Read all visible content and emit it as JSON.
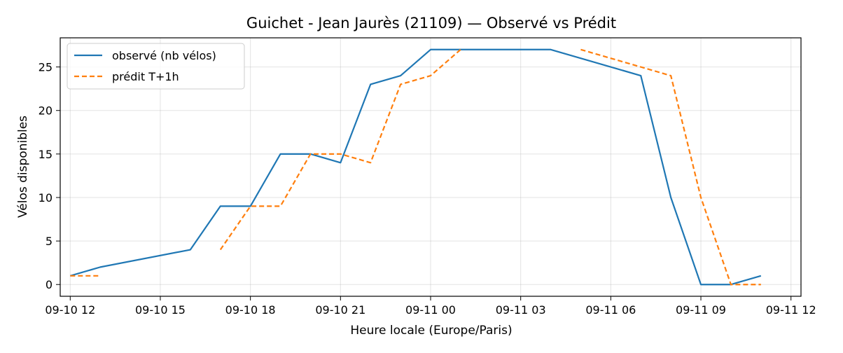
{
  "chart_data": {
    "type": "line",
    "title": "Guichet - Jean Jaurès (21109) — Observé vs Prédit",
    "xlabel": "Heure locale (Europe/Paris)",
    "ylabel": "Vélos disponibles",
    "xlim": [
      "2025-09-10T11:40",
      "2025-09-11T12:20"
    ],
    "ylim": [
      -1.35,
      28.35
    ],
    "x_ticks": [
      {
        "x": "2025-09-10T12:00",
        "label": "09-10 12"
      },
      {
        "x": "2025-09-10T15:00",
        "label": "09-10 15"
      },
      {
        "x": "2025-09-10T18:00",
        "label": "09-10 18"
      },
      {
        "x": "2025-09-10T21:00",
        "label": "09-10 21"
      },
      {
        "x": "2025-09-11T00:00",
        "label": "09-11 00"
      },
      {
        "x": "2025-09-11T03:00",
        "label": "09-11 03"
      },
      {
        "x": "2025-09-11T06:00",
        "label": "09-11 06"
      },
      {
        "x": "2025-09-11T09:00",
        "label": "09-11 09"
      },
      {
        "x": "2025-09-11T12:00",
        "label": "09-11 12"
      }
    ],
    "y_ticks": [
      0,
      5,
      10,
      15,
      20,
      25
    ],
    "grid": true,
    "legend_position": "top-left",
    "series": [
      {
        "name": "observé (nb vélos)",
        "color": "#1f77b4",
        "style": "solid",
        "points": [
          {
            "x": "2025-09-10T12:00",
            "y": 1
          },
          {
            "x": "2025-09-10T13:00",
            "y": 2
          },
          {
            "x": "2025-09-10T16:00",
            "y": 4
          },
          {
            "x": "2025-09-10T17:00",
            "y": 9
          },
          {
            "x": "2025-09-10T18:00",
            "y": 9
          },
          {
            "x": "2025-09-10T19:00",
            "y": 15
          },
          {
            "x": "2025-09-10T20:00",
            "y": 15
          },
          {
            "x": "2025-09-10T21:00",
            "y": 14
          },
          {
            "x": "2025-09-10T22:00",
            "y": 23
          },
          {
            "x": "2025-09-10T23:00",
            "y": 24
          },
          {
            "x": "2025-09-11T00:00",
            "y": 27
          },
          {
            "x": "2025-09-11T04:00",
            "y": 27
          },
          {
            "x": "2025-09-11T07:00",
            "y": 24
          },
          {
            "x": "2025-09-11T08:00",
            "y": 10
          },
          {
            "x": "2025-09-11T09:00",
            "y": 0
          },
          {
            "x": "2025-09-11T10:00",
            "y": 0
          },
          {
            "x": "2025-09-11T11:00",
            "y": 1
          }
        ]
      },
      {
        "name": "prédit T+1h",
        "color": "#ff7f0e",
        "style": "dashed",
        "segments": [
          [
            {
              "x": "2025-09-10T12:00",
              "y": 1
            },
            {
              "x": "2025-09-10T13:00",
              "y": 1
            }
          ],
          [
            {
              "x": "2025-09-10T17:00",
              "y": 4
            },
            {
              "x": "2025-09-10T18:00",
              "y": 9
            },
            {
              "x": "2025-09-10T19:00",
              "y": 9
            },
            {
              "x": "2025-09-10T20:00",
              "y": 15
            },
            {
              "x": "2025-09-10T21:00",
              "y": 15
            },
            {
              "x": "2025-09-10T22:00",
              "y": 14
            },
            {
              "x": "2025-09-10T23:00",
              "y": 23
            },
            {
              "x": "2025-09-11T00:00",
              "y": 24
            },
            {
              "x": "2025-09-11T01:00",
              "y": 27
            }
          ],
          [
            {
              "x": "2025-09-11T05:00",
              "y": 27
            },
            {
              "x": "2025-09-11T07:00",
              "y": 25
            },
            {
              "x": "2025-09-11T08:00",
              "y": 24
            },
            {
              "x": "2025-09-11T09:00",
              "y": 10
            },
            {
              "x": "2025-09-11T10:00",
              "y": 0
            },
            {
              "x": "2025-09-11T11:00",
              "y": 0
            }
          ]
        ]
      }
    ]
  }
}
